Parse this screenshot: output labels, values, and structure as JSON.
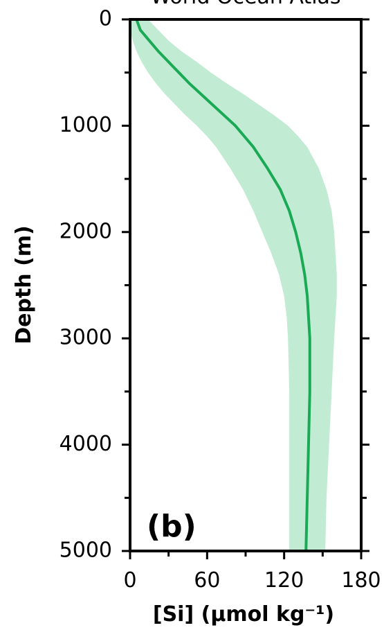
{
  "chart_data": {
    "type": "line",
    "title": "World Ocean Atlas",
    "panel_label": "(b)",
    "xlabel": "[Si] (μmol kg⁻¹)",
    "ylabel": "Depth (m)",
    "xlim": [
      0,
      180
    ],
    "ylim": [
      0,
      5000
    ],
    "y_inverted": true,
    "x_ticks": [
      "0",
      "60",
      "120",
      "180"
    ],
    "y_ticks": [
      "0",
      "1000",
      "2000",
      "3000",
      "4000",
      "5000"
    ],
    "grid": false,
    "colors": {
      "line": "#1aaa55",
      "band": "#c2ebd3",
      "axis": "#000000"
    },
    "series": [
      {
        "values": [
          {
            "depth": 0,
            "mean": 5,
            "lower": 0,
            "upper": 14
          },
          {
            "depth": 100,
            "mean": 8,
            "lower": 0,
            "upper": 22
          },
          {
            "depth": 200,
            "mean": 15,
            "lower": 2,
            "upper": 30
          },
          {
            "depth": 300,
            "mean": 22,
            "lower": 5,
            "upper": 40
          },
          {
            "depth": 400,
            "mean": 30,
            "lower": 9,
            "upper": 52
          },
          {
            "depth": 500,
            "mean": 38,
            "lower": 14,
            "upper": 63
          },
          {
            "depth": 600,
            "mean": 46,
            "lower": 20,
            "upper": 75
          },
          {
            "depth": 700,
            "mean": 55,
            "lower": 27,
            "upper": 88
          },
          {
            "depth": 800,
            "mean": 64,
            "lower": 35,
            "upper": 100
          },
          {
            "depth": 900,
            "mean": 73,
            "lower": 43,
            "upper": 112
          },
          {
            "depth": 1000,
            "mean": 82,
            "lower": 52,
            "upper": 123
          },
          {
            "depth": 1100,
            "mean": 89,
            "lower": 60,
            "upper": 131
          },
          {
            "depth": 1200,
            "mean": 96,
            "lower": 67,
            "upper": 138
          },
          {
            "depth": 1400,
            "mean": 107,
            "lower": 78,
            "upper": 147
          },
          {
            "depth": 1600,
            "mean": 117,
            "lower": 88,
            "upper": 153
          },
          {
            "depth": 1800,
            "mean": 124,
            "lower": 96,
            "upper": 157
          },
          {
            "depth": 2000,
            "mean": 129,
            "lower": 103,
            "upper": 159
          },
          {
            "depth": 2200,
            "mean": 133,
            "lower": 110,
            "upper": 160
          },
          {
            "depth": 2400,
            "mean": 136,
            "lower": 116,
            "upper": 161
          },
          {
            "depth": 2600,
            "mean": 138,
            "lower": 120,
            "upper": 161
          },
          {
            "depth": 2800,
            "mean": 139,
            "lower": 122,
            "upper": 160
          },
          {
            "depth": 3000,
            "mean": 140,
            "lower": 123,
            "upper": 159
          },
          {
            "depth": 3500,
            "mean": 140,
            "lower": 124,
            "upper": 157
          },
          {
            "depth": 4000,
            "mean": 139,
            "lower": 124,
            "upper": 155
          },
          {
            "depth": 4500,
            "mean": 138,
            "lower": 124,
            "upper": 153
          },
          {
            "depth": 5000,
            "mean": 137,
            "lower": 124,
            "upper": 152
          }
        ]
      }
    ]
  }
}
